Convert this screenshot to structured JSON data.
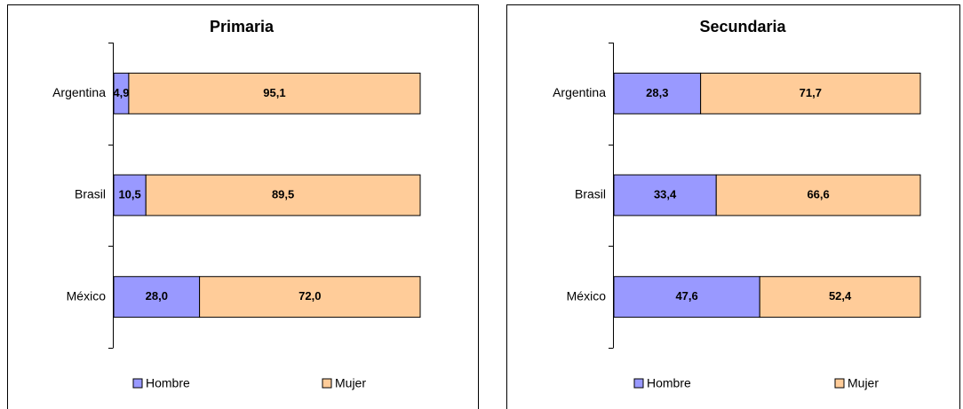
{
  "chart_data": [
    {
      "type": "stacked-bar",
      "orientation": "horizontal",
      "title": "Primaria",
      "categories": [
        "Argentina",
        "Brasil",
        "México"
      ],
      "xlim": [
        0,
        100
      ],
      "series": [
        {
          "name": "Hombre",
          "color": "#9999ff",
          "values": [
            4.9,
            10.5,
            28.0
          ],
          "value_labels": [
            "4,9",
            "10,5",
            "28,0"
          ]
        },
        {
          "name": "Mujer",
          "color": "#ffcc99",
          "values": [
            95.1,
            89.5,
            72.0
          ],
          "value_labels": [
            "95,1",
            "89,5",
            "72,0"
          ]
        }
      ]
    },
    {
      "type": "stacked-bar",
      "orientation": "horizontal",
      "title": "Secundaria",
      "categories": [
        "Argentina",
        "Brasil",
        "México"
      ],
      "xlim": [
        0,
        100
      ],
      "series": [
        {
          "name": "Hombre",
          "color": "#9999ff",
          "values": [
            28.3,
            33.4,
            47.6
          ],
          "value_labels": [
            "28,3",
            "33,4",
            "47,6"
          ]
        },
        {
          "name": "Mujer",
          "color": "#ffcc99",
          "values": [
            71.7,
            66.6,
            52.4
          ],
          "value_labels": [
            "71,7",
            "66,6",
            "52,4"
          ]
        }
      ]
    }
  ]
}
